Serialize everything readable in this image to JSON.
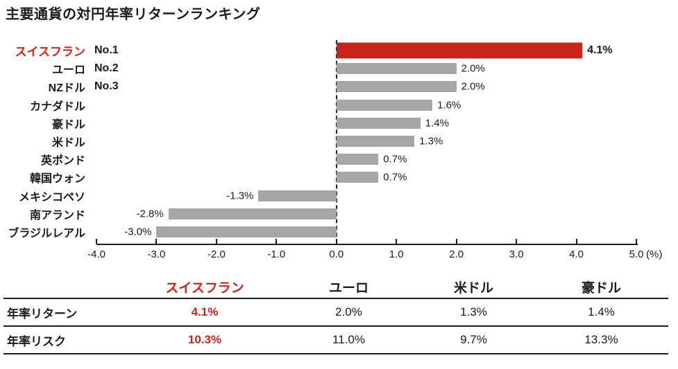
{
  "title": "主要通貨の対円年率リターンランキング",
  "colors": {
    "accent_red": "#c9241c",
    "bar_gray": "#a6a6a6",
    "text": "#1a1a1a"
  },
  "chart_data": {
    "type": "bar",
    "orientation": "horizontal",
    "title": "主要通貨の対円年率リターンランキング",
    "xlabel": "(%)",
    "xlim": [
      -4.0,
      5.0
    ],
    "x_ticks": [
      "-4.0",
      "-3.0",
      "-2.0",
      "-1.0",
      "0.0",
      "1.0",
      "2.0",
      "3.0",
      "4.0",
      "5.0"
    ],
    "x_axis_suffix": "(%)",
    "categories": [
      "スイスフラン",
      "ユーロ",
      "NZドル",
      "カナダドル",
      "豪ドル",
      "米ドル",
      "英ポンド",
      "韓国ウォン",
      "メキシコペソ",
      "南アランド",
      "ブラジルレアル"
    ],
    "values": [
      4.1,
      2.0,
      2.0,
      1.6,
      1.4,
      1.3,
      0.7,
      0.7,
      -1.3,
      -2.8,
      -3.0
    ],
    "rows": [
      {
        "label": "スイスフラン",
        "rank": "No.1",
        "value": 4.1,
        "value_label": "4.1%",
        "highlight": true
      },
      {
        "label": "ユーロ",
        "rank": "No.2",
        "value": 2.0,
        "value_label": "2.0%",
        "highlight": false
      },
      {
        "label": "NZドル",
        "rank": "No.3",
        "value": 2.0,
        "value_label": "2.0%",
        "highlight": false
      },
      {
        "label": "カナダドル",
        "rank": "",
        "value": 1.6,
        "value_label": "1.6%",
        "highlight": false
      },
      {
        "label": "豪ドル",
        "rank": "",
        "value": 1.4,
        "value_label": "1.4%",
        "highlight": false
      },
      {
        "label": "米ドル",
        "rank": "",
        "value": 1.3,
        "value_label": "1.3%",
        "highlight": false
      },
      {
        "label": "英ポンド",
        "rank": "",
        "value": 0.7,
        "value_label": "0.7%",
        "highlight": false
      },
      {
        "label": "韓国ウォン",
        "rank": "",
        "value": 0.7,
        "value_label": "0.7%",
        "highlight": false
      },
      {
        "label": "メキシコペソ",
        "rank": "",
        "value": -1.3,
        "value_label": "-1.3%",
        "highlight": false
      },
      {
        "label": "南アランド",
        "rank": "",
        "value": -2.8,
        "value_label": "-2.8%",
        "highlight": false
      },
      {
        "label": "ブラジルレアル",
        "rank": "",
        "value": -3.0,
        "value_label": "-3.0%",
        "highlight": false
      }
    ]
  },
  "table": {
    "highlight_column": "スイスフラン",
    "columns": [
      "",
      "スイスフラン",
      "ユーロ",
      "米ドル",
      "豪ドル"
    ],
    "rows": [
      {
        "label": "年率リターン",
        "values": [
          "4.1%",
          "2.0%",
          "1.3%",
          "1.4%"
        ]
      },
      {
        "label": "年率リスク",
        "values": [
          "10.3%",
          "11.0%",
          "9.7%",
          "13.3%"
        ]
      }
    ]
  }
}
